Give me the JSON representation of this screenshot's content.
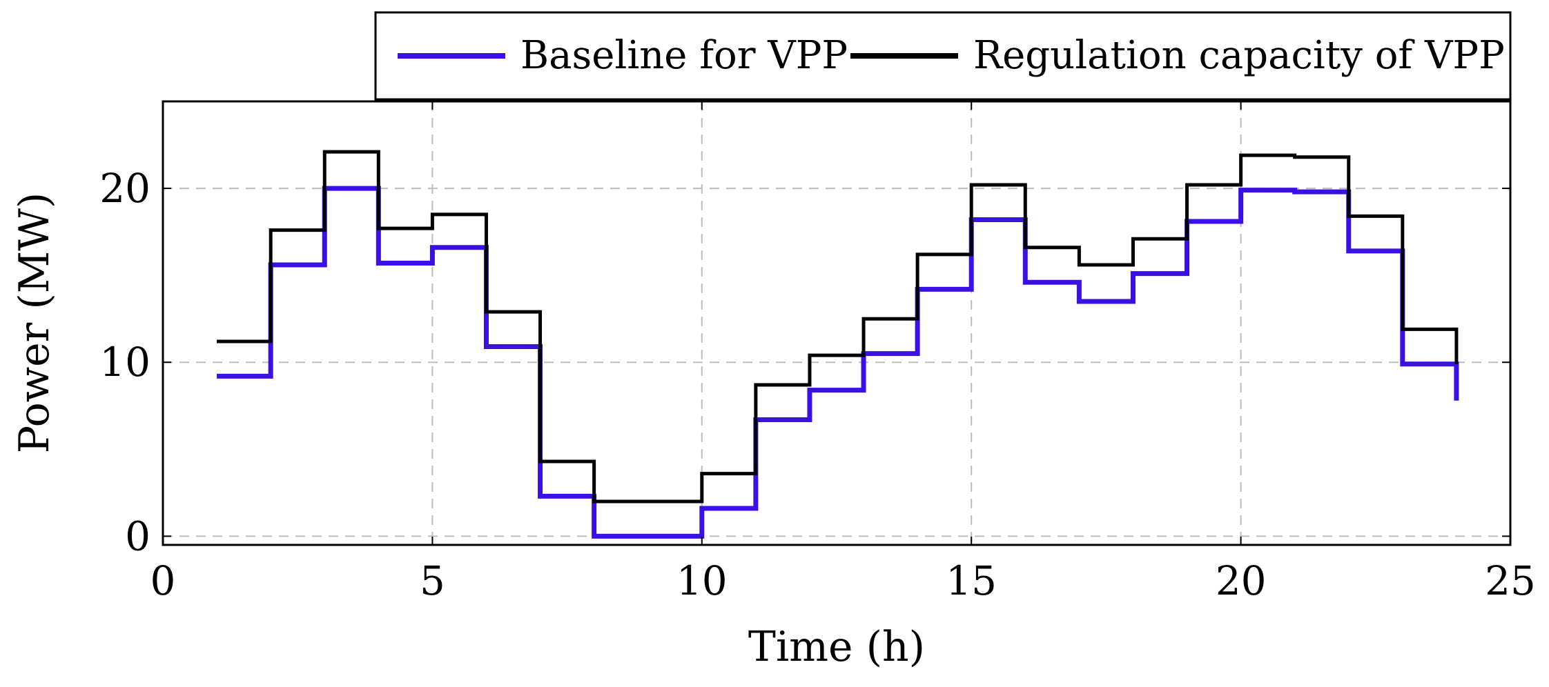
{
  "chart_data": {
    "type": "line",
    "step": "post",
    "title": "",
    "xlabel": "Time (h)",
    "ylabel": "Power (MW)",
    "xlim": [
      0,
      25
    ],
    "ylim": [
      -0.5,
      25
    ],
    "xticks": [
      0,
      5,
      10,
      15,
      20,
      25
    ],
    "yticks": [
      0,
      10,
      20
    ],
    "grid": true,
    "legend_position": "top, above plot, right-aligned",
    "x": [
      1,
      2,
      3,
      4,
      5,
      6,
      7,
      8,
      9,
      10,
      11,
      12,
      13,
      14,
      15,
      16,
      17,
      18,
      19,
      20,
      21,
      22,
      23,
      24
    ],
    "series": [
      {
        "name": "Baseline for VPP",
        "color": "#3a10e5",
        "values": [
          9.2,
          15.6,
          20.0,
          15.7,
          16.6,
          10.9,
          2.3,
          0.0,
          0.0,
          1.6,
          6.7,
          8.4,
          10.5,
          14.2,
          18.2,
          14.6,
          13.5,
          15.1,
          18.1,
          19.9,
          19.8,
          16.4,
          9.9,
          7.8
        ]
      },
      {
        "name": "Regulation capacity of VPP",
        "color": "#000000",
        "values": [
          11.2,
          17.6,
          22.1,
          17.7,
          18.5,
          12.9,
          4.3,
          2.0,
          2.0,
          3.6,
          8.7,
          10.4,
          12.5,
          16.2,
          20.2,
          16.6,
          15.6,
          17.1,
          20.2,
          21.9,
          21.8,
          18.4,
          11.9,
          9.9
        ]
      }
    ]
  }
}
